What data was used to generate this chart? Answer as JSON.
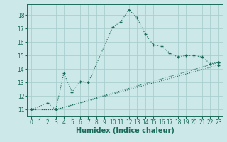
{
  "xlabel": "Humidex (Indice chaleur)",
  "ylabel": "",
  "bg_color": "#cce8e8",
  "grid_color": "#aacece",
  "line_color": "#1a6b5a",
  "xlim": [
    -0.5,
    23.5
  ],
  "ylim": [
    10.5,
    18.8
  ],
  "xticks": [
    0,
    1,
    2,
    3,
    4,
    5,
    6,
    7,
    8,
    9,
    10,
    11,
    12,
    13,
    14,
    15,
    16,
    17,
    18,
    19,
    20,
    21,
    22,
    23
  ],
  "yticks": [
    11,
    12,
    13,
    14,
    15,
    16,
    17,
    18
  ],
  "series1_x": [
    0,
    2,
    3,
    4,
    5,
    6,
    7,
    10,
    11,
    12,
    13,
    14,
    15,
    16,
    17,
    18,
    19,
    20,
    21,
    22,
    23
  ],
  "series1_y": [
    11.0,
    11.5,
    11.0,
    13.7,
    12.3,
    13.1,
    13.0,
    17.1,
    17.5,
    18.4,
    17.8,
    16.6,
    15.8,
    15.7,
    15.2,
    14.9,
    15.0,
    15.0,
    14.9,
    14.4,
    14.5
  ],
  "series2_x": [
    0,
    3,
    23
  ],
  "series2_y": [
    11.0,
    11.0,
    14.5
  ],
  "series3_x": [
    0,
    3,
    23
  ],
  "series3_y": [
    11.0,
    11.0,
    14.3
  ]
}
